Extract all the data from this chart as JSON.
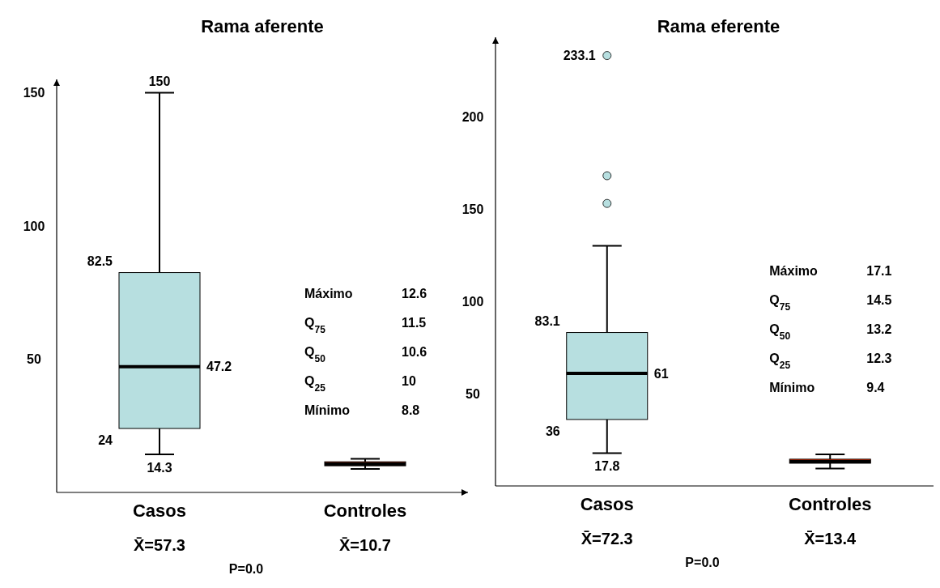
{
  "chart_data": [
    {
      "type": "box",
      "title": "Rama aferente",
      "categories": [
        "Casos",
        "Controles"
      ],
      "colors": [
        "#b7dfe0",
        "#ff3300"
      ],
      "ylim": [
        0,
        155
      ],
      "yticks": [
        50,
        100,
        150
      ],
      "boxes": [
        {
          "low": 14.3,
          "q1": 24,
          "median": 47.2,
          "q3": 82.5,
          "high": 150
        },
        {
          "low": 8.8,
          "q1": 10,
          "median": 10.6,
          "q3": 11.5,
          "high": 12.6
        }
      ],
      "annotations": [
        "150",
        "82.5",
        "47.2",
        "24",
        "14.3",
        "Máximo",
        "12.6",
        "Q$_{75}$",
        "11.5",
        "Q$_{50}$",
        "10.6",
        "Q$_{25}$",
        "10",
        "Mínimo",
        "8.8",
        "P=0.0",
        "X̄=57.3",
        "X̄=10.7"
      ]
    },
    {
      "type": "box",
      "title": "Rama eferente",
      "categories": [
        "Casos",
        "Controles"
      ],
      "colors": [
        "#b7dfe0",
        "#ff3300"
      ],
      "ylim": [
        0,
        243
      ],
      "yticks": [
        50,
        100,
        150,
        200
      ],
      "boxes": [
        {
          "low": 17.8,
          "q1": 36,
          "median": 61,
          "q3": 83.1,
          "high": 130,
          "outliers": [
            233.1,
            168,
            153
          ]
        },
        {
          "low": 9.4,
          "q1": 12.3,
          "median": 13.2,
          "q3": 14.5,
          "high": 17.1
        }
      ],
      "annotations": [
        "233.1",
        "83.1",
        "61",
        "36",
        "17.8",
        "Máximo",
        "17.1",
        "Q$_{75}$",
        "14.5",
        "Q$_{50}$",
        "13.2",
        "Q$_{25}$",
        "12.3",
        "Mínimo",
        "9.4",
        "P=0.0",
        "X̄=72.3",
        "X̄=13.4"
      ]
    }
  ]
}
